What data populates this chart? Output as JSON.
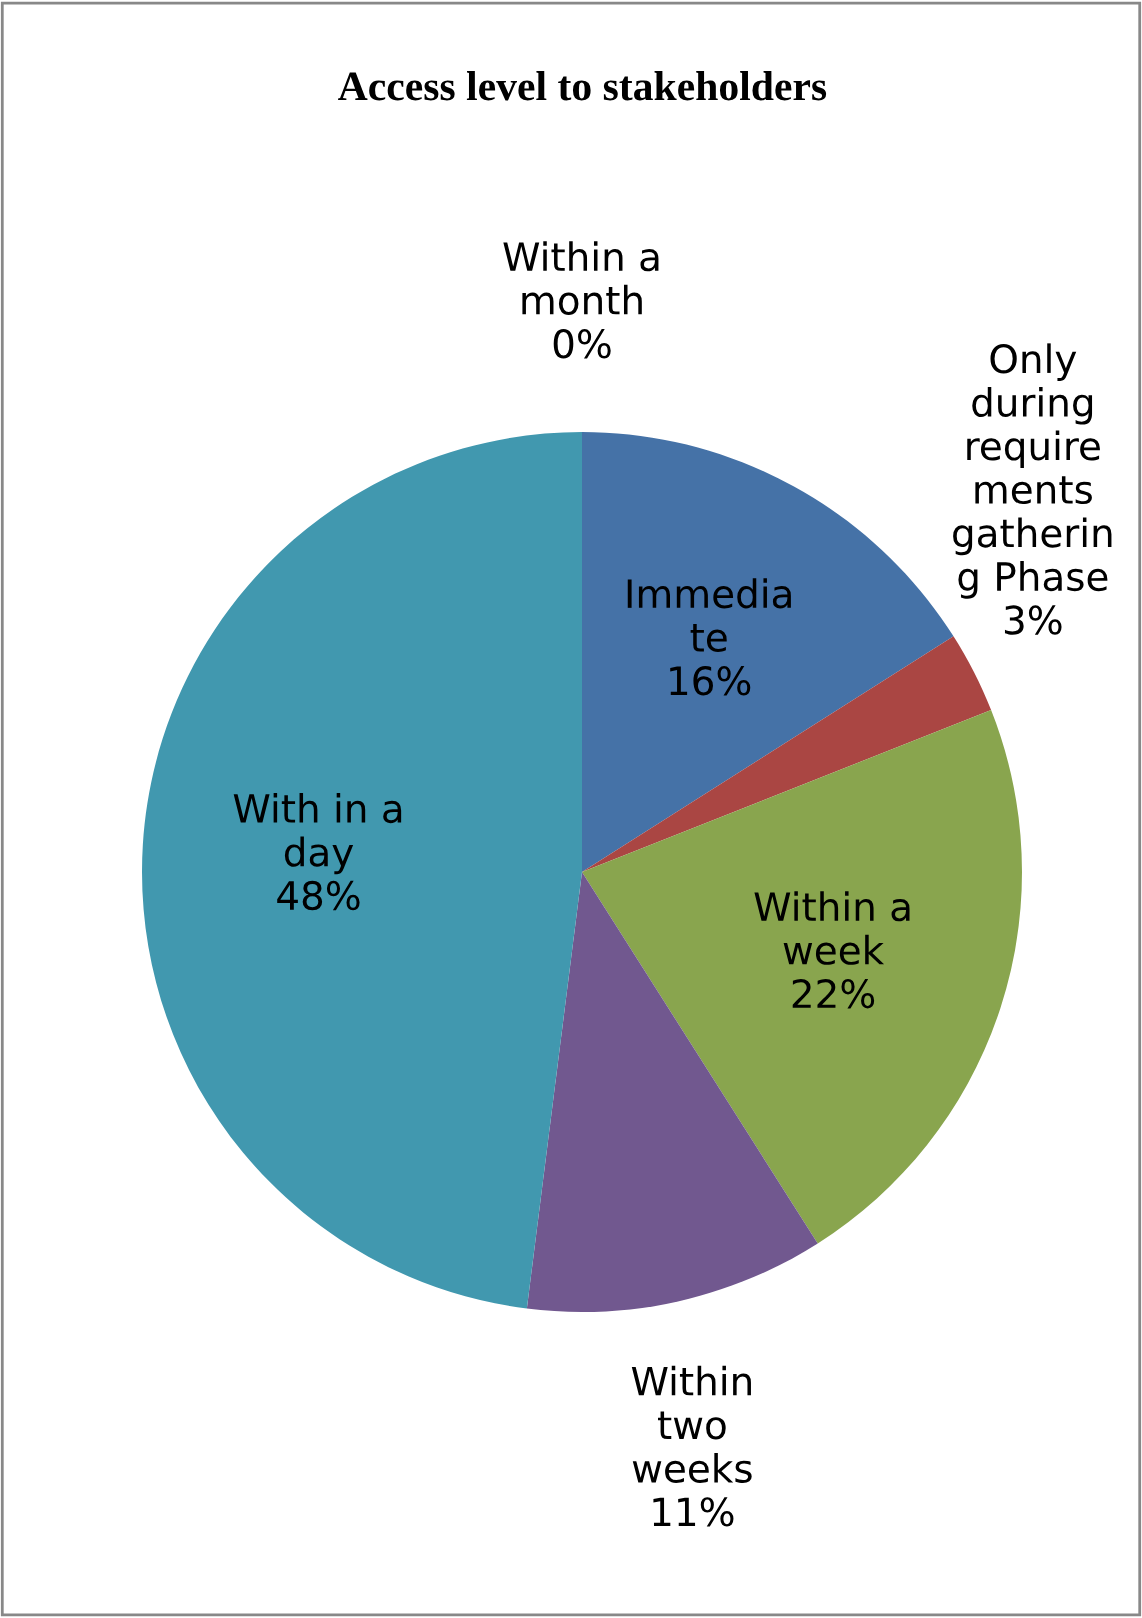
{
  "chart_data": {
    "type": "pie",
    "title": "Access level to stakeholders",
    "categories": [
      "Immedia\nte",
      "Only\nduring\nrequire\nments\ngatherin\ng Phase",
      "Within a\nweek",
      "Within\ntwo\nweeks",
      "With in a\nday",
      "Within a\nmonth"
    ],
    "values": [
      16,
      3,
      22,
      11,
      48,
      0
    ],
    "value_labels": [
      "16%",
      "3%",
      "22%",
      "11%",
      "48%",
      "0%"
    ],
    "colors": [
      "#4572a7",
      "#aa4643",
      "#89a54e",
      "#71588f",
      "#4198af",
      "#db843d"
    ]
  }
}
